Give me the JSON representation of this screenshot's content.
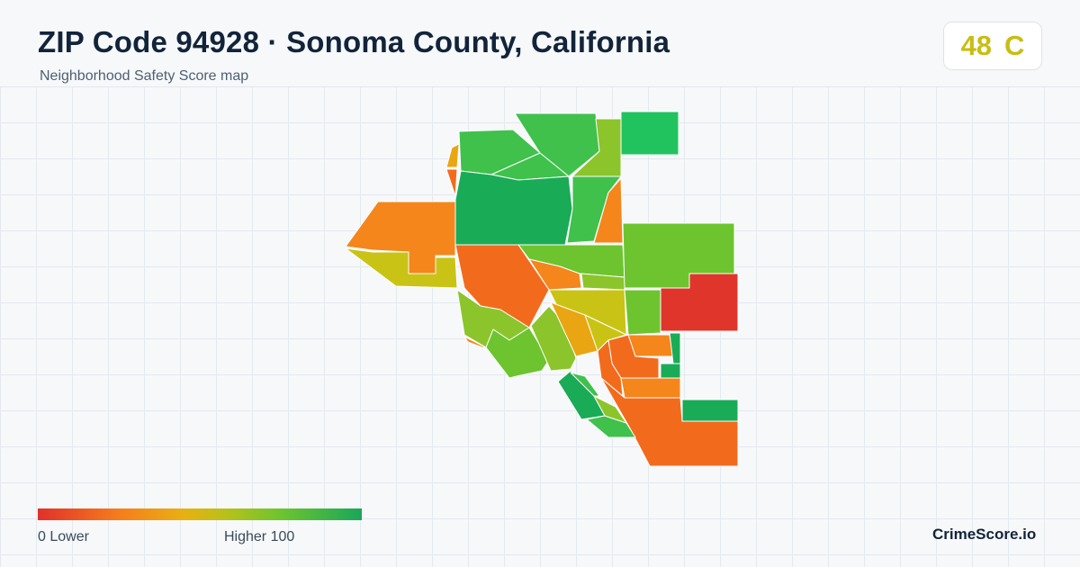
{
  "header": {
    "title": "ZIP Code 94928 · Sonoma County, California",
    "subtitle": "Neighborhood Safety Score map"
  },
  "score": {
    "value": "48",
    "grade": "C",
    "color": "#c8be12"
  },
  "legend": {
    "low_label": "0  Lower",
    "high_label": "Higher  100",
    "min": 0,
    "max": 100,
    "gradient_colors": [
      "#e0302a",
      "#f57d1d",
      "#e8b012",
      "#b8c11a",
      "#6dc42f",
      "#1aa65a"
    ]
  },
  "brand": {
    "name": "CrimeScore.io"
  },
  "map": {
    "fill_colors": {
      "red": "#e0352a",
      "dark_orange": "#f26b1d",
      "orange": "#f4861b",
      "amber": "#eaa512",
      "yellow_green": "#c9c316",
      "lime": "#8bc52b",
      "light_green": "#6dc42f",
      "green": "#3fc14c",
      "dark_green": "#1aab57",
      "emerald": "#21c35e"
    }
  }
}
